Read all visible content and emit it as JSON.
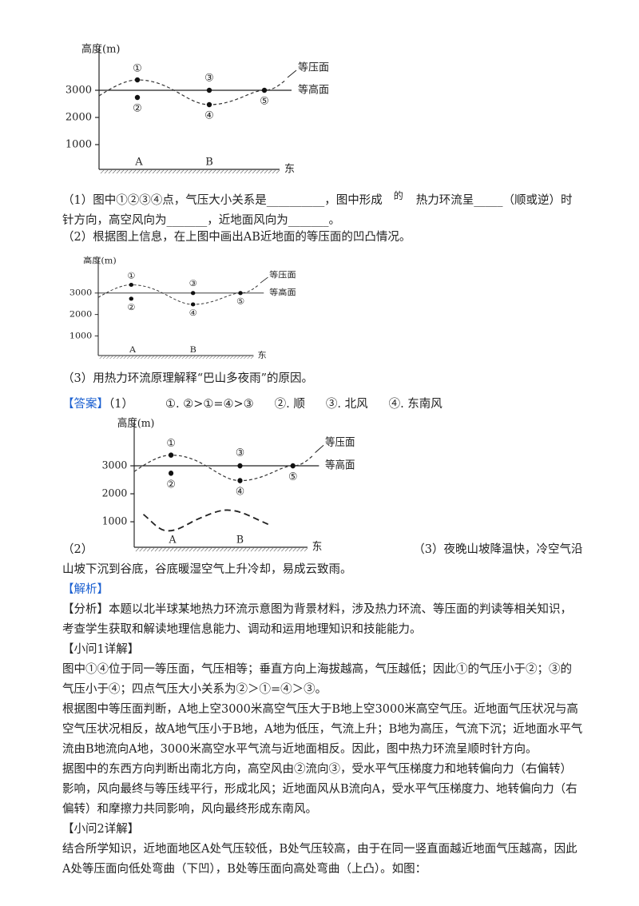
{
  "figures": [
    {
      "y_label": "高度(m)",
      "yticks": [
        "3000",
        "2000",
        "1000"
      ],
      "points": [
        "①",
        "②",
        "③",
        "④",
        "⑤"
      ],
      "places": [
        "A",
        "B"
      ],
      "direction": "东",
      "isobaric_label": "等压面",
      "isohypse_label": "等高面"
    },
    {
      "y_label": "高度(m)",
      "yticks": [
        "3000",
        "2000",
        "1000"
      ],
      "points": [
        "①",
        "②",
        "③",
        "④",
        "⑤"
      ],
      "places": [
        "A",
        "B"
      ],
      "direction": "东",
      "isobaric_label": "等压面",
      "isohypse_label": "等高面"
    },
    {
      "y_label": "高度(m)",
      "yticks": [
        "3000",
        "2000",
        "1000"
      ],
      "points": [
        "①",
        "②",
        "③",
        "④",
        "⑤"
      ],
      "places": [
        "A",
        "B"
      ],
      "direction": "东",
      "isobaric_label": "等压面",
      "isohypse_label": "等高面"
    }
  ],
  "q1": {
    "before": "（1）图中①②③④点，气压大小关系是__________，图中形成",
    "raised": "的",
    "after": "热力环流呈_____（顺或逆）时针方向，高空风向为_______，近地面风向为_______。"
  },
  "q2": "（2）根据图上信息，在上图中画出AB近地面的等压面的凹凸情况。",
  "q3": "（3）用热力环流原理解释“巴山多夜雨”的原因。",
  "answer": {
    "tag": "【答案】",
    "part1": "（1）",
    "items": [
      "①. ②>①=④>③",
      "②. 顺",
      "③. 北风",
      "④. 东南风"
    ],
    "part2": "（2）",
    "part3": "（3）夜晚山坡降温快，冷空气沿山坡下沉到谷底，谷底暖湿空气上升冷却，易成云致雨。"
  },
  "analysis": {
    "tag": "【解析】",
    "summary": "【分析】本题以北半球某地热力环流示意图为背景材料，涉及热力环流、等压面的判读等相关知识，考查学生获取和解读地理信息能力、调动和运用地理知识和技能能力。",
    "sub1_title": "【小问1详解】",
    "sub1_paragraphs": [
      "图中①④位于同一等压面，气压相等；垂直方向上海拔越高，气压越低；因此①的气压小于②；③的气压小于④；四点气压大小关系为②＞①=④＞③。",
      "根据图中等压面判断，A地上空3000米高空气压大于B地上空3000米高空气压。近地面气压状况与高空气压状况相反，故A地气压小于B地，A地为低压，气流上升；B地为高压，气流下沉；近地面水平气流由B地流向A地，3000米高空水平气流与近地面相反。因此，图中热力环流呈顺时针方向。",
      "据图中的东西方向判断出南北方向，高空风由②流向③，受水平气压梯度力和地转偏向力（右偏转）影响，风向最终与等压线平行，形成北风；近地面风从B流向A，受水平气压梯度力、地转偏向力（右偏转）和摩擦力共同影响，风向最终形成东南风。"
    ],
    "sub2_title": "【小问2详解】",
    "sub2_paragraph": "结合所学知识，近地面地区A处气压较低，B处气压较高，由于在同一竖直面越近地面气压越高，因此A处等压面向低处弯曲（下凹），B处等压面向高处弯曲（上凸）。如图："
  }
}
